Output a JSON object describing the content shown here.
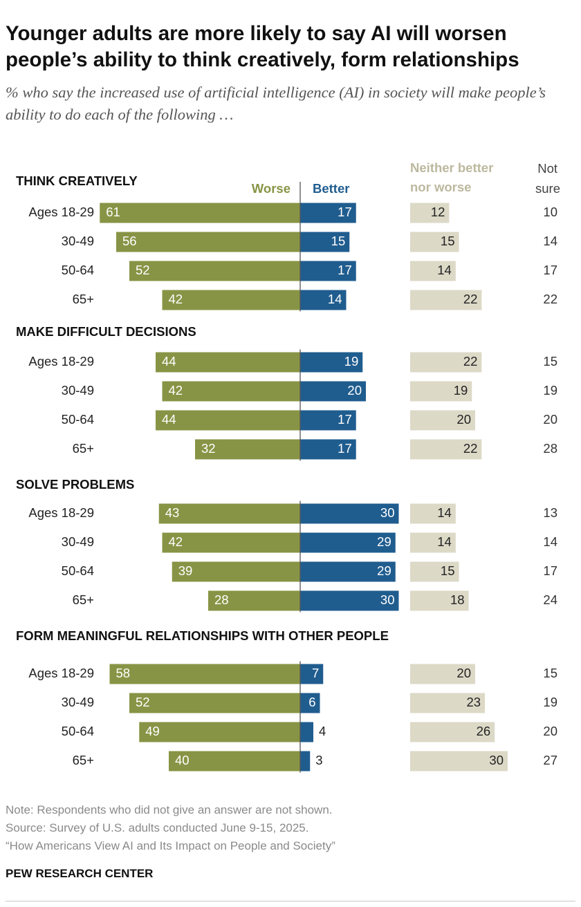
{
  "title": "Younger adults are more likely to say AI will worsen people’s ability to think creatively, form relationships",
  "subtitle": "% who say the increased use of artificial intelligence (AI) in society will make people’s ability to do each of the following …",
  "colors": {
    "worse": "#889445",
    "better": "#205d8f",
    "neither": "#dcd9c7",
    "neither_label": "#bcb89e",
    "axis": "#555555"
  },
  "chart_data": {
    "type": "bar",
    "headers": {
      "worse": "Worse",
      "better": "Better",
      "neither_line1": "Neither better",
      "neither_line2": "nor worse",
      "not_sure_line1": "Not",
      "not_sure_line2": "sure"
    },
    "groups": [
      {
        "title": "THINK CREATIVELY",
        "rows": [
          {
            "label": "Ages 18-29",
            "worse": 61,
            "better": 17,
            "neither": 12,
            "not_sure": 10
          },
          {
            "label": "30-49",
            "worse": 56,
            "better": 15,
            "neither": 15,
            "not_sure": 14
          },
          {
            "label": "50-64",
            "worse": 52,
            "better": 17,
            "neither": 14,
            "not_sure": 17
          },
          {
            "label": "65+",
            "worse": 42,
            "better": 14,
            "neither": 22,
            "not_sure": 22
          }
        ]
      },
      {
        "title": "MAKE DIFFICULT DECISIONS",
        "rows": [
          {
            "label": "Ages 18-29",
            "worse": 44,
            "better": 19,
            "neither": 22,
            "not_sure": 15
          },
          {
            "label": "30-49",
            "worse": 42,
            "better": 20,
            "neither": 19,
            "not_sure": 19
          },
          {
            "label": "50-64",
            "worse": 44,
            "better": 17,
            "neither": 20,
            "not_sure": 20
          },
          {
            "label": "65+",
            "worse": 32,
            "better": 17,
            "neither": 22,
            "not_sure": 28
          }
        ]
      },
      {
        "title": "SOLVE PROBLEMS",
        "rows": [
          {
            "label": "Ages 18-29",
            "worse": 43,
            "better": 30,
            "neither": 14,
            "not_sure": 13
          },
          {
            "label": "30-49",
            "worse": 42,
            "better": 29,
            "neither": 14,
            "not_sure": 14
          },
          {
            "label": "50-64",
            "worse": 39,
            "better": 29,
            "neither": 15,
            "not_sure": 17
          },
          {
            "label": "65+",
            "worse": 28,
            "better": 30,
            "neither": 18,
            "not_sure": 24
          }
        ]
      },
      {
        "title": "FORM MEANINGFUL RELATIONSHIPS WITH OTHER PEOPLE",
        "rows": [
          {
            "label": "Ages 18-29",
            "worse": 58,
            "better": 7,
            "neither": 20,
            "not_sure": 15
          },
          {
            "label": "30-49",
            "worse": 52,
            "better": 6,
            "neither": 23,
            "not_sure": 19
          },
          {
            "label": "50-64",
            "worse": 49,
            "better": 4,
            "neither": 26,
            "not_sure": 20
          },
          {
            "label": "65+",
            "worse": 40,
            "better": 3,
            "neither": 30,
            "not_sure": 27
          }
        ]
      }
    ]
  },
  "notes": {
    "note": "Note: Respondents who did not give an answer are not shown.",
    "source": "Source: Survey of U.S. adults conducted June 9-15, 2025.",
    "report": "“How Americans View AI and Its Impact on People and Society”"
  },
  "org": "PEW RESEARCH CENTER"
}
